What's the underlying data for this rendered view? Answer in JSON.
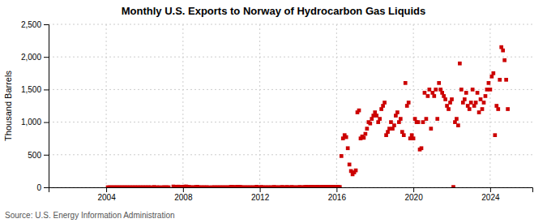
{
  "chart_data": {
    "type": "scatter",
    "title": "Monthly U.S. Exports to Norway of Hydrocarbon Gas Liquids",
    "ylabel": "Thousand Barrels",
    "annotations": [
      "Source: U.S. Energy Information Administration"
    ],
    "color": "#cc0000",
    "marker": "square",
    "grid": true,
    "xlim": [
      2001,
      2026.2
    ],
    "xticks": [
      2004,
      2008,
      2012,
      2016,
      2020,
      2024
    ],
    "ylim": [
      0,
      2500
    ],
    "yticks": [
      0,
      500,
      {
        "value": 1000,
        "label": "1,000"
      },
      {
        "value": 1500,
        "label": "1,500"
      },
      {
        "value": 2000,
        "label": "2,000"
      },
      {
        "value": 2500,
        "label": "2,500"
      }
    ],
    "x": [
      2004.083,
      2004.167,
      2004.25,
      2004.333,
      2004.417,
      2004.5,
      2004.583,
      2004.667,
      2004.75,
      2004.833,
      2004.917,
      2005.0,
      2005.083,
      2005.167,
      2005.25,
      2005.333,
      2005.417,
      2005.5,
      2005.583,
      2005.667,
      2005.75,
      2005.833,
      2005.917,
      2006.0,
      2006.083,
      2006.167,
      2006.25,
      2006.333,
      2006.5,
      2006.667,
      2006.75,
      2006.917,
      2007.0,
      2007.083,
      2007.167,
      2007.25,
      2007.5,
      2007.583,
      2007.667,
      2007.75,
      2007.833,
      2007.917,
      2008.0,
      2008.083,
      2008.167,
      2008.25,
      2008.333,
      2008.417,
      2008.5,
      2008.583,
      2008.667,
      2008.75,
      2008.833,
      2008.917,
      2009.0,
      2009.083,
      2009.167,
      2009.25,
      2009.333,
      2009.5,
      2009.583,
      2009.667,
      2009.75,
      2009.833,
      2009.917,
      2010.0,
      2010.083,
      2010.167,
      2010.25,
      2010.333,
      2010.417,
      2010.5,
      2010.583,
      2010.667,
      2010.75,
      2010.833,
      2010.917,
      2011.0,
      2011.083,
      2011.167,
      2011.25,
      2011.333,
      2011.417,
      2011.5,
      2011.583,
      2011.667,
      2011.75,
      2011.833,
      2011.917,
      2012.0,
      2012.083,
      2012.167,
      2012.25,
      2012.333,
      2012.417,
      2012.5,
      2012.583,
      2012.667,
      2012.75,
      2012.833,
      2012.917,
      2013.0,
      2013.083,
      2013.167,
      2013.25,
      2013.333,
      2013.417,
      2013.5,
      2013.583,
      2013.667,
      2013.75,
      2013.833,
      2013.917,
      2014.0,
      2014.083,
      2014.167,
      2014.25,
      2014.333,
      2014.417,
      2014.5,
      2014.583,
      2014.667,
      2014.75,
      2014.833,
      2014.917,
      2015.0,
      2015.083,
      2015.167,
      2015.25,
      2015.333,
      2015.417,
      2015.5,
      2015.583,
      2015.667,
      2015.75,
      2015.833,
      2015.917,
      2016.0,
      2016.083,
      2016.167,
      2016.25,
      2016.333,
      2016.417,
      2016.5,
      2016.583,
      2016.667,
      2016.75,
      2016.833,
      2016.917,
      2017.0,
      2017.083,
      2017.167,
      2017.25,
      2017.333,
      2017.417,
      2017.5,
      2017.583,
      2017.667,
      2017.75,
      2017.833,
      2017.917,
      2018.0,
      2018.083,
      2018.167,
      2018.25,
      2018.333,
      2018.417,
      2018.5,
      2018.583,
      2018.667,
      2018.75,
      2018.833,
      2018.917,
      2019.0,
      2019.083,
      2019.167,
      2019.25,
      2019.333,
      2019.417,
      2019.5,
      2019.583,
      2019.667,
      2019.75,
      2019.833,
      2019.917,
      2020.0,
      2020.083,
      2020.167,
      2020.25,
      2020.333,
      2020.417,
      2020.5,
      2020.583,
      2020.667,
      2020.75,
      2020.833,
      2020.917,
      2021.0,
      2021.083,
      2021.167,
      2021.25,
      2021.333,
      2021.417,
      2021.5,
      2021.583,
      2021.667,
      2021.75,
      2021.833,
      2021.917,
      2022.0,
      2022.083,
      2022.167,
      2022.25,
      2022.333,
      2022.417,
      2022.5,
      2022.583,
      2022.667,
      2022.75,
      2022.833,
      2022.917,
      2023.0,
      2023.083,
      2023.167,
      2023.25,
      2023.333,
      2023.417,
      2023.5,
      2023.583,
      2023.667,
      2023.75,
      2023.833,
      2023.917,
      2024.0,
      2024.083,
      2024.167,
      2024.25,
      2024.333,
      2024.417,
      2024.5,
      2024.583,
      2024.667,
      2024.75,
      2024.833,
      2024.917
    ],
    "values": [
      0,
      0,
      0,
      0,
      0,
      0,
      0,
      0,
      0,
      0,
      0,
      0,
      0,
      0,
      0,
      0,
      0,
      0,
      0,
      0,
      0,
      0,
      0,
      0,
      0,
      0,
      0,
      0,
      5,
      0,
      0,
      0,
      0,
      0,
      0,
      0,
      12,
      8,
      5,
      10,
      8,
      5,
      8,
      10,
      12,
      8,
      5,
      0,
      0,
      0,
      5,
      8,
      0,
      0,
      0,
      0,
      0,
      0,
      0,
      0,
      0,
      0,
      0,
      0,
      0,
      0,
      0,
      0,
      0,
      0,
      0,
      8,
      5,
      5,
      0,
      8,
      8,
      5,
      0,
      0,
      0,
      0,
      0,
      0,
      0,
      0,
      0,
      8,
      0,
      0,
      5,
      0,
      0,
      0,
      0,
      0,
      0,
      0,
      5,
      0,
      0,
      0,
      0,
      5,
      0,
      0,
      5,
      0,
      0,
      5,
      0,
      0,
      0,
      0,
      5,
      0,
      0,
      5,
      8,
      5,
      5,
      8,
      8,
      5,
      5,
      8,
      5,
      5,
      8,
      8,
      5,
      8,
      5,
      8,
      5,
      8,
      5,
      5,
      8,
      5,
      480,
      750,
      800,
      770,
      600,
      350,
      250,
      200,
      230,
      260,
      1150,
      1180,
      750,
      780,
      760,
      820,
      900,
      1000,
      980,
      1050,
      1100,
      1150,
      1100,
      1000,
      1050,
      1200,
      1250,
      1300,
      800,
      850,
      900,
      1000,
      900,
      950,
      1100,
      1150,
      1000,
      1050,
      850,
      800,
      1600,
      1250,
      1300,
      750,
      800,
      750,
      1050,
      1000,
      1000,
      580,
      600,
      1000,
      1450,
      1050,
      1400,
      1500,
      900,
      1450,
      1400,
      1500,
      1050,
      1600,
      1500,
      1450,
      1400,
      1350,
      1250,
      1200,
      1300,
      1350,
      5,
      1000,
      1050,
      950,
      1900,
      1500,
      1300,
      1350,
      1450,
      1250,
      1200,
      1300,
      1500,
      1250,
      1300,
      1450,
      1150,
      1350,
      1200,
      1300,
      1400,
      1500,
      1600,
      1500,
      1700,
      1750,
      800,
      1250,
      1200,
      1650,
      2150,
      2100,
      1950,
      1650,
      1200
    ]
  }
}
